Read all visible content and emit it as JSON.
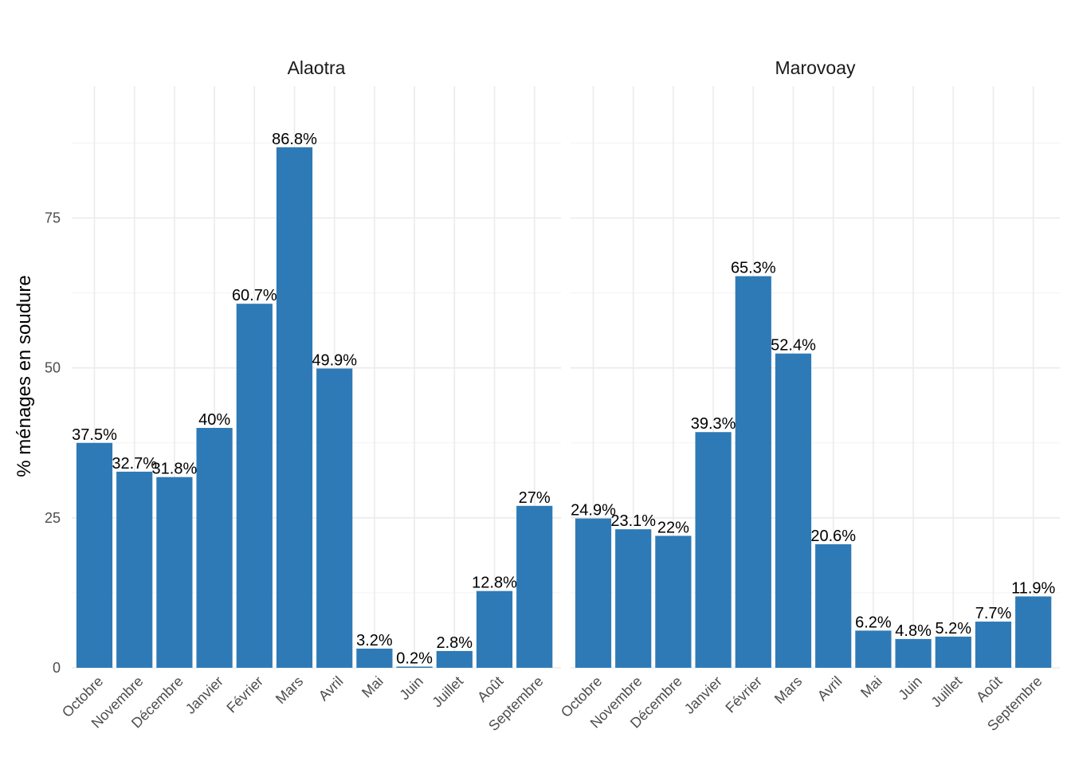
{
  "chart_data": {
    "type": "bar",
    "ylabel": "% ménages en soudure",
    "xlabel": "",
    "ylim": [
      0,
      97
    ],
    "yticks": [
      0,
      25,
      50,
      75
    ],
    "categories": [
      "Octobre",
      "Novembre",
      "Décembre",
      "Janvier",
      "Février",
      "Mars",
      "Avril",
      "Mai",
      "Juin",
      "Juillet",
      "Août",
      "Septembre"
    ],
    "bar_color": "#2e7ab6",
    "panels": [
      {
        "name": "Alaotra",
        "values": [
          37.5,
          32.7,
          31.8,
          40,
          60.7,
          86.8,
          49.9,
          3.2,
          0.2,
          2.8,
          12.8,
          27
        ],
        "labels": [
          "37.5%",
          "32.7%",
          "31.8%",
          "40%",
          "60.7%",
          "86.8%",
          "49.9%",
          "3.2%",
          "0.2%",
          "2.8%",
          "12.8%",
          "27%"
        ]
      },
      {
        "name": "Marovoay",
        "values": [
          24.9,
          23.1,
          22,
          39.3,
          65.3,
          52.4,
          20.6,
          6.2,
          4.8,
          5.2,
          7.7,
          11.9
        ],
        "labels": [
          "24.9%",
          "23.1%",
          "22%",
          "39.3%",
          "65.3%",
          "52.4%",
          "20.6%",
          "6.2%",
          "4.8%",
          "5.2%",
          "7.7%",
          "11.9%"
        ]
      }
    ]
  }
}
